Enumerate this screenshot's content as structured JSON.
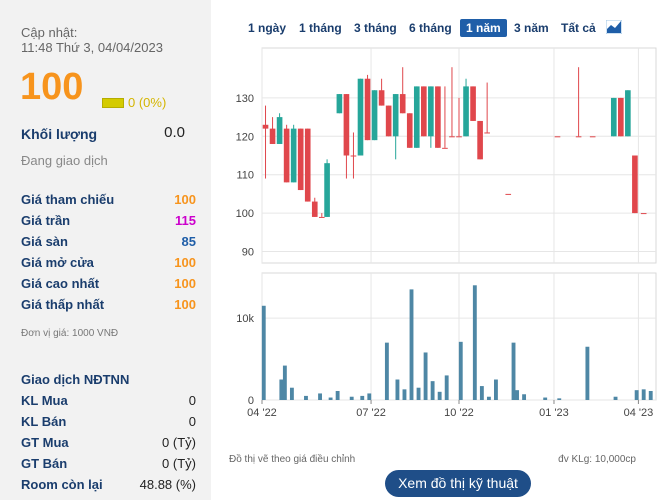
{
  "summary": {
    "update_label": "Cập nhật:",
    "update_time": "11:48 Thứ 3, 04/04/2023",
    "price": "100",
    "change": "0 (0%)",
    "volume_label": "Khối lượng",
    "volume_value": "0.0",
    "trading_status": "Đang giao dịch",
    "colors": {
      "price": "#f7941d",
      "ceiling": "#cc00cc",
      "floor": "#1f5ea8",
      "label": "#1a3d6d"
    }
  },
  "prices": [
    {
      "label": "Giá tham chiếu",
      "value": "100",
      "color": "#f7941d"
    },
    {
      "label": "Giá trần",
      "value": "115",
      "color": "#cc00cc"
    },
    {
      "label": "Giá sàn",
      "value": "85",
      "color": "#1f5ea8"
    },
    {
      "label": "Giá mở cửa",
      "value": "100",
      "color": "#f7941d"
    },
    {
      "label": "Giá cao nhất",
      "value": "100",
      "color": "#f7941d"
    },
    {
      "label": "Giá thấp nhất",
      "value": "100",
      "color": "#f7941d"
    }
  ],
  "unit_note": "Đơn vị giá: 1000 VNĐ",
  "foreign": {
    "title": "Giao dịch NĐTNN",
    "rows": [
      {
        "label": "KL Mua",
        "value": "0"
      },
      {
        "label": "KL Bán",
        "value": "0"
      },
      {
        "label": "GT Mua",
        "value": "0 (Tỷ)"
      },
      {
        "label": "GT Bán",
        "value": "0 (Tỷ)"
      },
      {
        "label": "Room còn lại",
        "value": "48.88 (%)"
      }
    ]
  },
  "tabs": [
    "1 ngày",
    "1 tháng",
    "3 tháng",
    "6 tháng",
    "1 năm",
    "3 năm",
    "Tất cả"
  ],
  "active_tab": "1 năm",
  "footer": {
    "adjusted_note": "Đồ thị vẽ theo giá điều chỉnh",
    "volume_unit": "đv KLg: 10,000cp",
    "button": "Xem đồ thị kỹ thuật"
  },
  "chart_data": {
    "type": "candlestick",
    "price_axis": {
      "ylim": [
        87,
        143
      ],
      "ticks": [
        90,
        100,
        110,
        120,
        130
      ]
    },
    "volume_axis": {
      "ylim": [
        0,
        15500
      ],
      "ticks": [
        0,
        10000
      ],
      "tick_labels": [
        "0",
        "10k"
      ]
    },
    "x_tick_labels": [
      "04 '22",
      "07 '22",
      "10 '22",
      "01 '23",
      "04 '23"
    ],
    "colors": {
      "up": "#26a69a",
      "down": "#e0474c",
      "volume": "#4e87a5",
      "grid": "#e6e6e6"
    },
    "candles": [
      {
        "o": 123,
        "h": 128,
        "l": 109,
        "c": 122
      },
      {
        "o": 122,
        "h": 125,
        "l": 118,
        "c": 118
      },
      {
        "o": 118,
        "h": 126,
        "l": 118,
        "c": 125
      },
      {
        "o": 122,
        "h": 123,
        "l": 108,
        "c": 108
      },
      {
        "o": 108,
        "h": 123,
        "l": 108,
        "c": 122
      },
      {
        "o": 122,
        "h": 122,
        "l": 106,
        "c": 106
      },
      {
        "o": 122,
        "h": 122,
        "l": 103,
        "c": 103
      },
      {
        "o": 103,
        "h": 104,
        "l": 99,
        "c": 99
      },
      {
        "o": 99,
        "h": 100,
        "l": 99,
        "c": 99
      },
      {
        "o": 99,
        "h": 114,
        "l": 99,
        "c": 113
      },
      {
        "o": 126,
        "h": 131,
        "l": 126,
        "c": 131
      },
      {
        "o": 131,
        "h": 131,
        "l": 109,
        "c": 115
      },
      {
        "o": 115,
        "h": 121,
        "l": 109,
        "c": 115
      },
      {
        "o": 115,
        "h": 135,
        "l": 115,
        "c": 135
      },
      {
        "o": 135,
        "h": 136,
        "l": 119,
        "c": 119
      },
      {
        "o": 119,
        "h": 132,
        "l": 119,
        "c": 132
      },
      {
        "o": 132,
        "h": 135,
        "l": 128,
        "c": 128
      },
      {
        "o": 128,
        "h": 128,
        "l": 120,
        "c": 120
      },
      {
        "o": 120,
        "h": 131,
        "l": 114,
        "c": 131
      },
      {
        "o": 131,
        "h": 138,
        "l": 126,
        "c": 126
      },
      {
        "o": 126,
        "h": 126,
        "l": 117,
        "c": 117
      },
      {
        "o": 117,
        "h": 133,
        "l": 117,
        "c": 133
      },
      {
        "o": 133,
        "h": 133,
        "l": 120,
        "c": 120
      },
      {
        "o": 120,
        "h": 133,
        "l": 117,
        "c": 133
      },
      {
        "o": 133,
        "h": 133,
        "l": 117,
        "c": 117
      },
      {
        "o": 117,
        "h": 133,
        "l": 117,
        "c": 117
      },
      {
        "o": 120,
        "h": 138,
        "l": 120,
        "c": 120
      },
      {
        "o": 120,
        "h": 130,
        "l": 120,
        "c": 120
      },
      {
        "o": 120,
        "h": 135,
        "l": 120,
        "c": 133
      },
      {
        "o": 133,
        "h": 133,
        "l": 124,
        "c": 124
      },
      {
        "o": 124,
        "h": 124,
        "l": 114,
        "c": 114
      },
      {
        "o": 121,
        "h": 134,
        "l": 121,
        "c": 121
      },
      {
        "o": 105,
        "h": 105,
        "l": 105,
        "c": 105
      },
      {
        "o": 120,
        "h": 120,
        "l": 120,
        "c": 120
      },
      {
        "o": 120,
        "h": 138,
        "l": 120,
        "c": 120
      },
      {
        "o": 120,
        "h": 120,
        "l": 120,
        "c": 120
      },
      {
        "o": 120,
        "h": 130,
        "l": 120,
        "c": 130
      },
      {
        "o": 130,
        "h": 130,
        "l": 120,
        "c": 120
      },
      {
        "o": 120,
        "h": 132,
        "l": 120,
        "c": 132
      },
      {
        "o": 115,
        "h": 115,
        "l": 100,
        "c": 100
      },
      {
        "o": 100,
        "h": 100,
        "l": 100,
        "c": 100
      }
    ],
    "volumes": [
      11500,
      2500,
      4200,
      1500,
      500,
      800,
      300,
      1100,
      400,
      500,
      800,
      7000,
      2500,
      1300,
      13500,
      1500,
      5800,
      2300,
      1000,
      3000,
      7100,
      14000,
      1700,
      400,
      2500,
      7000,
      1200,
      700,
      300,
      200,
      6500,
      400,
      1200,
      1300,
      1100
    ],
    "volume_x": [
      0.5,
      5.5,
      6.5,
      8.5,
      12.5,
      16.5,
      19.5,
      21.5,
      25.5,
      28.5,
      30.5,
      35.5,
      38.5,
      40.5,
      42.5,
      44.5,
      46.5,
      48.5,
      50.5,
      52.5,
      56.5,
      60.5,
      62.5,
      64.5,
      66.5,
      71.5,
      72.5,
      74.5,
      80.5,
      84.5,
      92.5,
      100.5,
      106.5,
      108.5,
      110.5
    ],
    "candle_x": [
      1,
      3,
      5,
      7,
      9,
      11,
      13,
      15,
      17,
      18.5,
      22,
      24,
      26,
      28,
      30,
      32,
      34,
      36,
      38,
      40,
      42,
      44,
      46,
      48,
      50,
      52,
      54,
      56,
      58,
      60,
      62,
      64,
      70,
      84,
      90,
      94,
      100,
      102,
      104,
      106,
      108.5
    ],
    "x_domain": [
      0,
      112
    ],
    "x_tick_pos": [
      0,
      31,
      56,
      83,
      107
    ]
  }
}
